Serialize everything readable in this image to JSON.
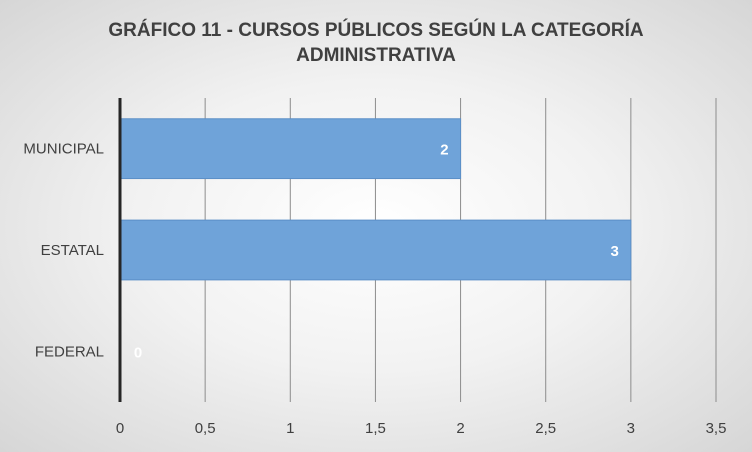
{
  "chart_data": {
    "type": "bar",
    "orientation": "horizontal",
    "title": "GRÁFICO 11 - CURSOS PÚBLICOS SEGÚN LA CATEGORÍA\nADMINISTRATIVA",
    "categories": [
      "MUNICIPAL",
      "ESTATAL",
      "FEDERAL"
    ],
    "values": [
      2,
      3,
      0
    ],
    "data_labels": [
      "2",
      "3",
      "0"
    ],
    "xlim": [
      0,
      3.5
    ],
    "x_ticks": [
      0,
      0.5,
      1,
      1.5,
      2,
      2.5,
      3,
      3.5
    ],
    "x_tick_labels": [
      "0",
      "0,5",
      "1",
      "1,5",
      "2",
      "2,5",
      "3",
      "3,5"
    ],
    "grid": true,
    "legend": "none",
    "colors": {
      "bar": "#6fa3d9",
      "bar_edge": "#5b8fc7",
      "grid": "#8c8c8c",
      "axis": "#262626"
    }
  }
}
